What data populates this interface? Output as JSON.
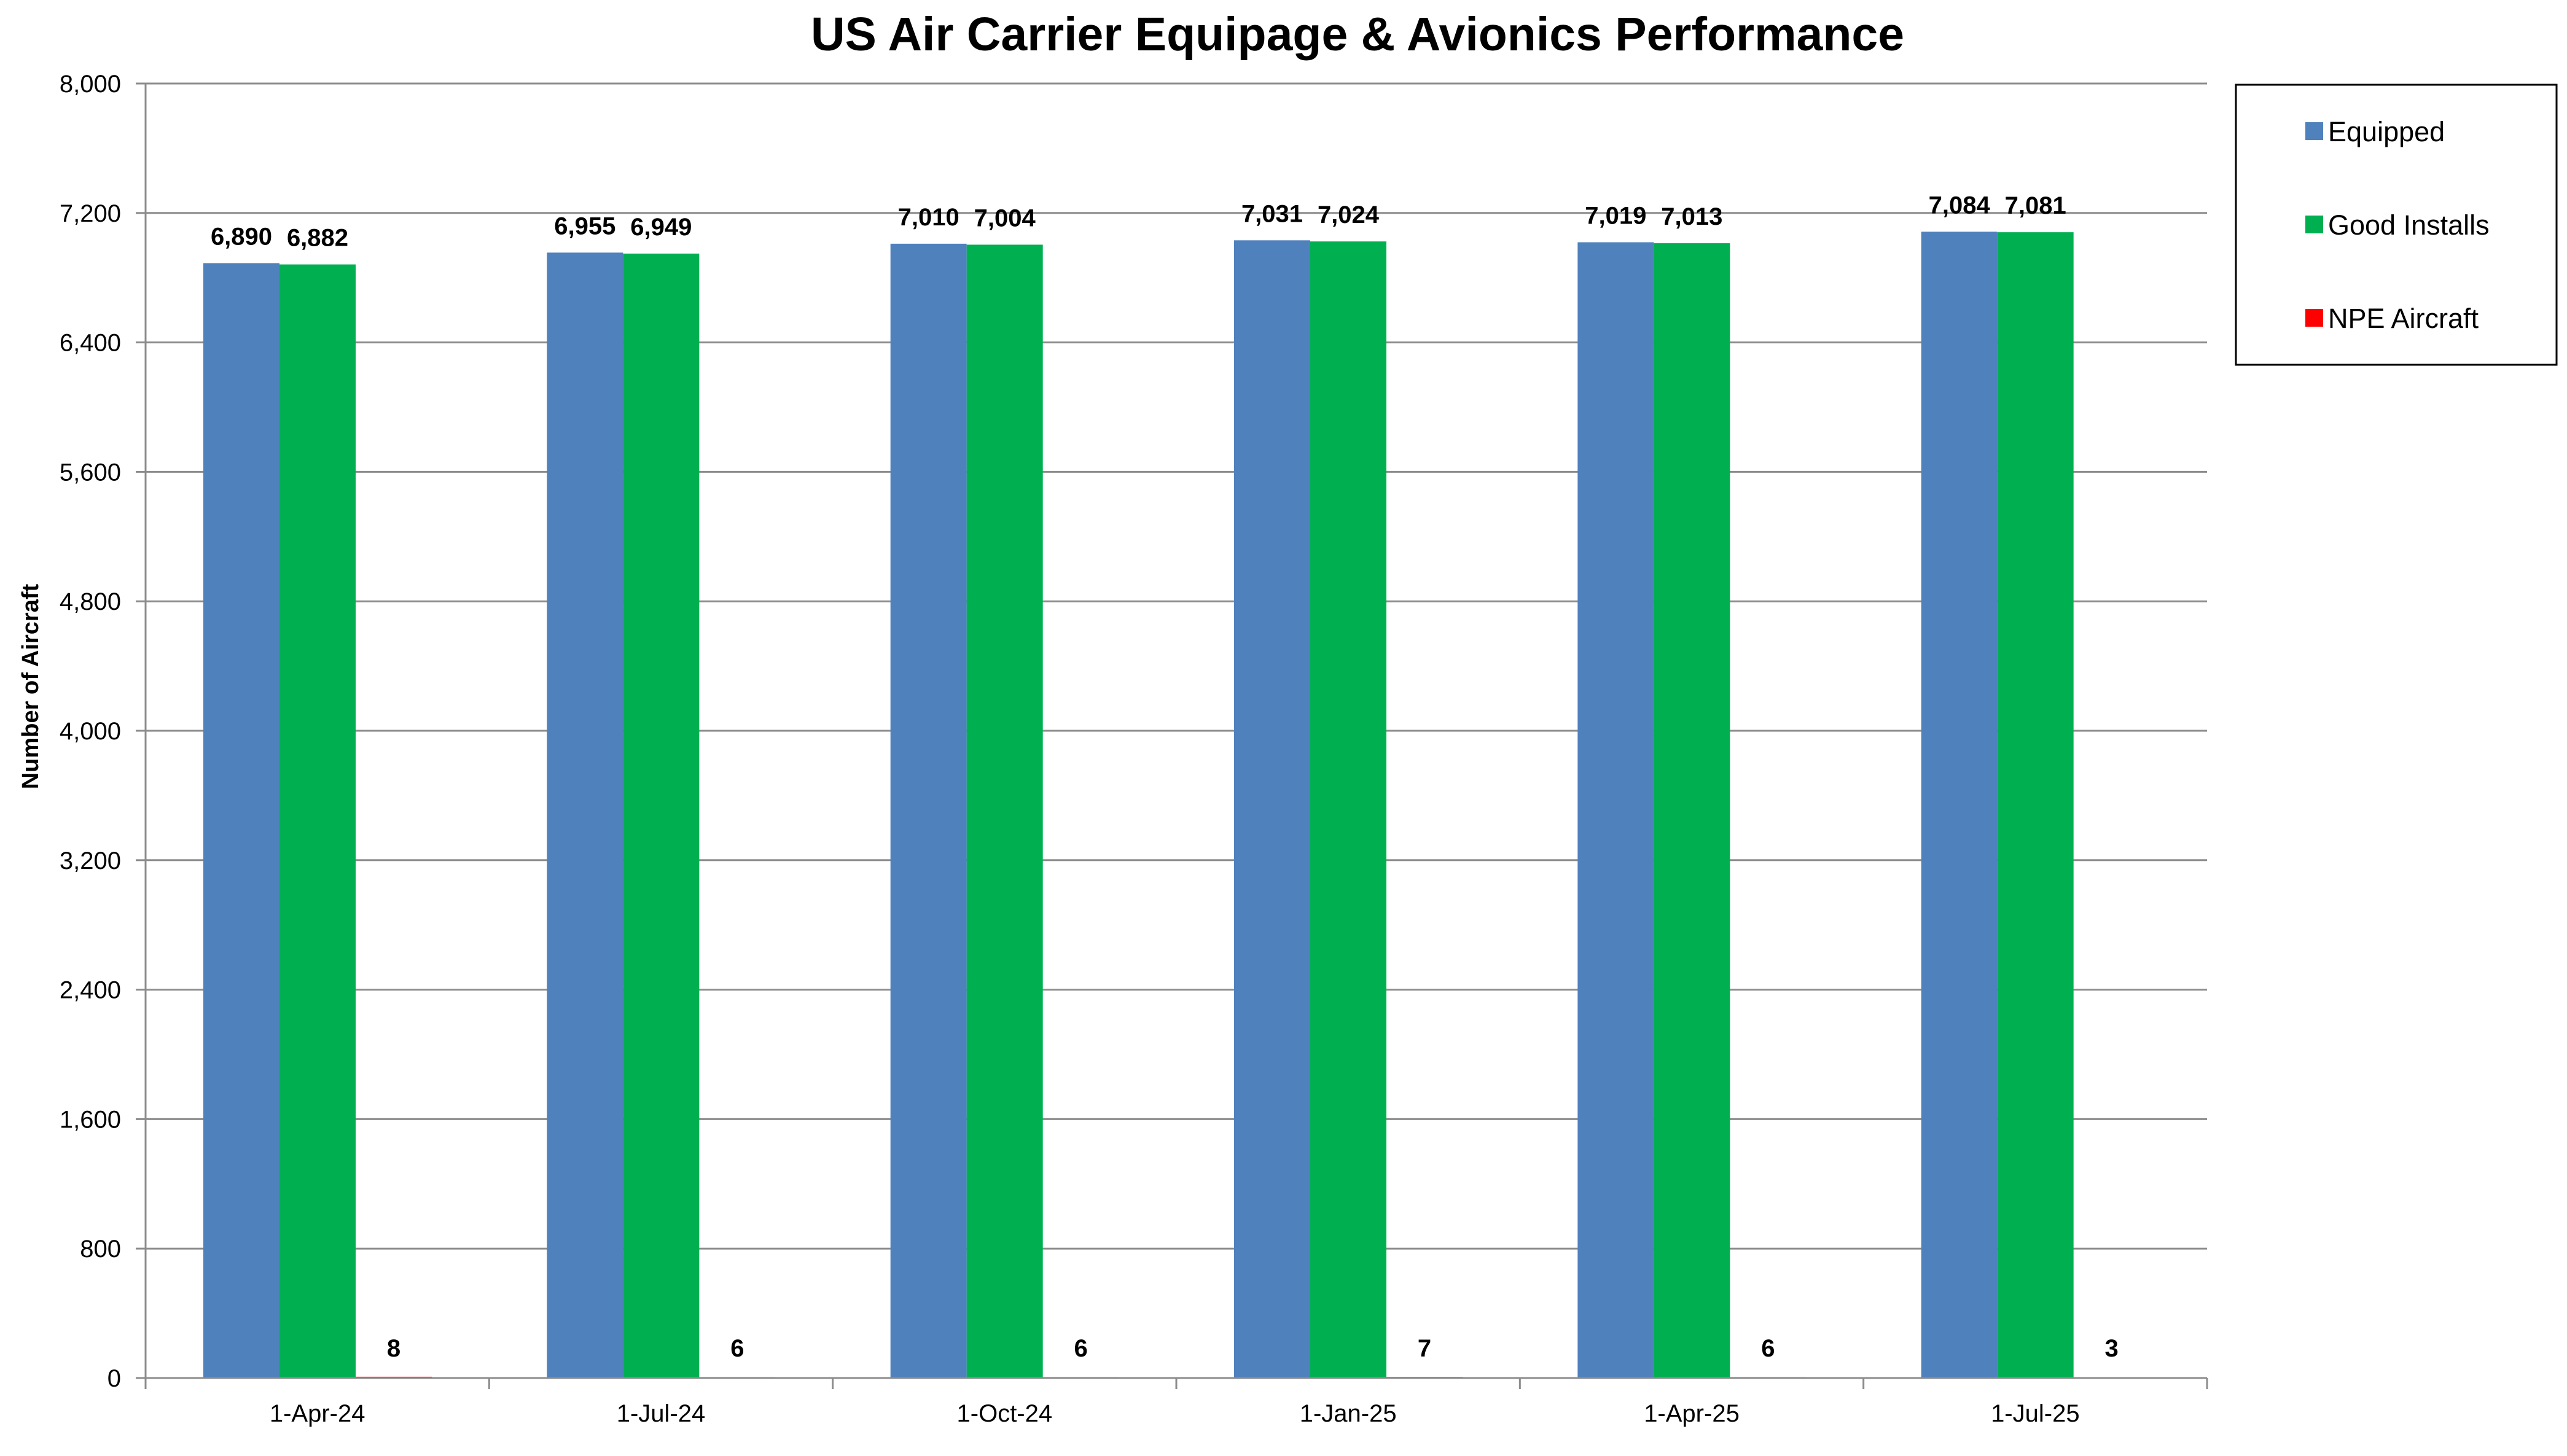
{
  "chart_data": {
    "type": "bar",
    "title": "US Air Carrier Equipage & Avionics Performance",
    "xlabel": "",
    "ylabel": "Number of Aircraft",
    "ylim": [
      0,
      8000
    ],
    "yticks": [
      0,
      800,
      1600,
      2400,
      3200,
      4000,
      4800,
      5600,
      6400,
      7200,
      8000
    ],
    "ytick_labels": [
      "0",
      "800",
      "1,600",
      "2,400",
      "3,200",
      "4,000",
      "4,800",
      "5,600",
      "6,400",
      "7,200",
      "8,000"
    ],
    "grid": true,
    "legend_position": "top-right",
    "categories": [
      "1-Apr-24",
      "1-Jul-24",
      "1-Oct-24",
      "1-Jan-25",
      "1-Apr-25",
      "1-Jul-25"
    ],
    "series": [
      {
        "name": "Equipped",
        "color": "#4F81BD",
        "values": [
          6890,
          6955,
          7010,
          7031,
          7019,
          7084
        ],
        "labels": [
          "6,890",
          "6,955",
          "7,010",
          "7,031",
          "7,019",
          "7,084"
        ]
      },
      {
        "name": "Good Installs",
        "color": "#00B050",
        "values": [
          6882,
          6949,
          7004,
          7024,
          7013,
          7081
        ],
        "labels": [
          "6,882",
          "6,949",
          "7,004",
          "7,024",
          "7,013",
          "7,081"
        ]
      },
      {
        "name": "NPE Aircraft",
        "color": "#FF0000",
        "values": [
          8,
          6,
          6,
          7,
          6,
          3
        ],
        "labels": [
          "8",
          "6",
          "6",
          "7",
          "6",
          "3"
        ]
      }
    ]
  }
}
